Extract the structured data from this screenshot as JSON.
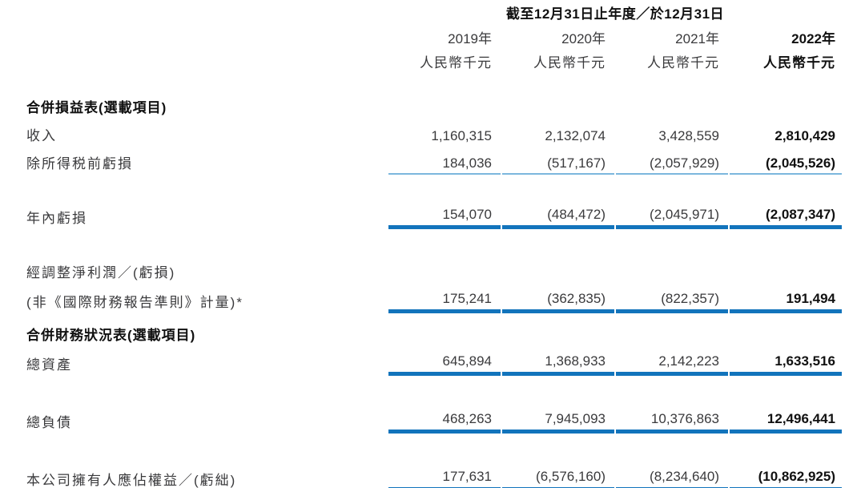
{
  "colors": {
    "thin-rule": "#7cb7de",
    "thick-rule": "#1274bc",
    "text": "#3a3a3c",
    "strong": "#111111"
  },
  "table": {
    "period_title": "截至12月31日止年度／於12月31日",
    "unit_note": "人民幣千元",
    "columns": [
      {
        "year": "2019年",
        "unit": "人民幣千元",
        "emphasis": false
      },
      {
        "year": "2020年",
        "unit": "人民幣千元",
        "emphasis": false
      },
      {
        "year": "2021年",
        "unit": "人民幣千元",
        "emphasis": false
      },
      {
        "year": "2022年",
        "unit": "人民幣千元",
        "emphasis": true
      }
    ],
    "sections": [
      {
        "title": "合併損益表(選載項目)",
        "rows": [
          {
            "label": "收入",
            "rule": "none",
            "values": [
              "1,160,315",
              "2,132,074",
              "3,428,559",
              "2,810,429"
            ]
          },
          {
            "label": "除所得税前虧損",
            "rule": "thin",
            "values": [
              "184,036",
              "(517,167)",
              "(2,057,929)",
              "(2,045,526)"
            ]
          },
          {
            "label": "年內虧損",
            "rule": "thick",
            "values": [
              "154,070",
              "(484,472)",
              "(2,045,971)",
              "(2,087,347)"
            ]
          },
          {
            "label_line1": "經調整淨利潤／(虧損)",
            "label_line2": "(非《國際財務報告準則》計量)*",
            "rule": "thick",
            "values": [
              "175,241",
              "(362,835)",
              "(822,357)",
              "191,494"
            ]
          }
        ]
      },
      {
        "title": "合併財務狀況表(選載項目)",
        "rows": [
          {
            "label": "總資產",
            "rule": "thick",
            "values": [
              "645,894",
              "1,368,933",
              "2,142,223",
              "1,633,516"
            ]
          },
          {
            "label": "總負債",
            "rule": "thick",
            "values": [
              "468,263",
              "7,945,093",
              "10,376,863",
              "12,496,441"
            ]
          },
          {
            "label": "本公司擁有人應佔權益／(虧絀)",
            "rule": "thick",
            "values": [
              "177,631",
              "(6,576,160)",
              "(8,234,640)",
              "(10,862,925)"
            ]
          }
        ]
      }
    ]
  }
}
